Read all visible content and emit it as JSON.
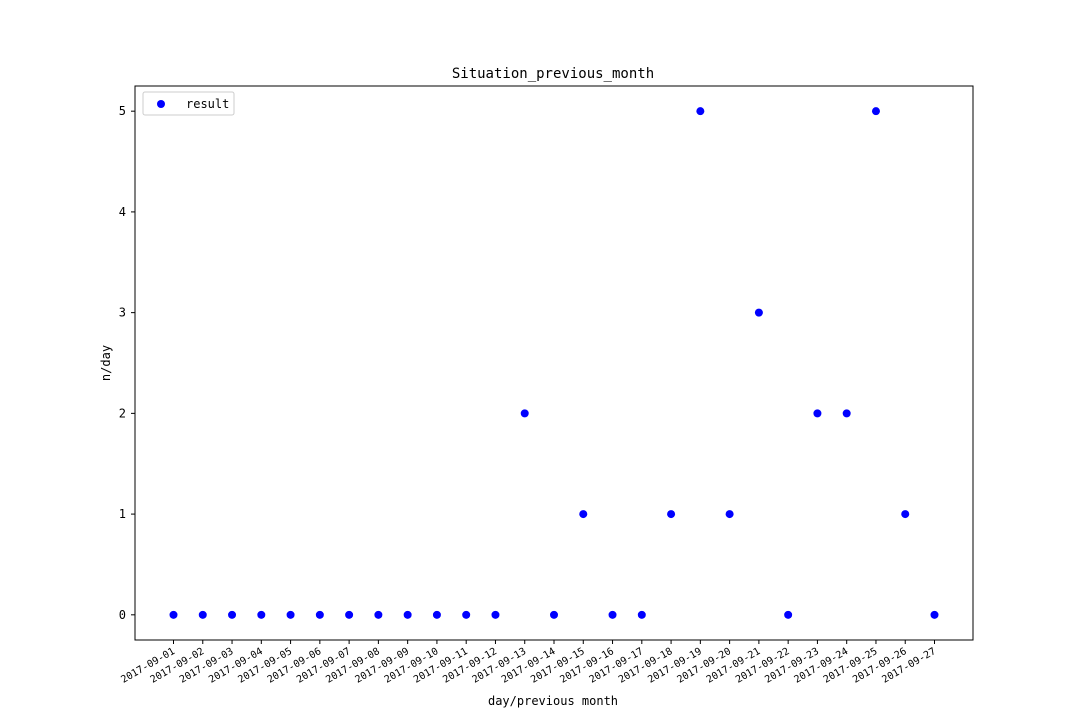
{
  "chart_data": {
    "type": "scatter",
    "title": "Situation_previous_month",
    "xlabel": "day/previous month",
    "ylabel": "n/day",
    "x": [
      "2017-09-01",
      "2017-09-02",
      "2017-09-03",
      "2017-09-04",
      "2017-09-05",
      "2017-09-06",
      "2017-09-07",
      "2017-09-08",
      "2017-09-09",
      "2017-09-10",
      "2017-09-11",
      "2017-09-12",
      "2017-09-13",
      "2017-09-14",
      "2017-09-15",
      "2017-09-16",
      "2017-09-17",
      "2017-09-18",
      "2017-09-19",
      "2017-09-20",
      "2017-09-21",
      "2017-09-22",
      "2017-09-23",
      "2017-09-24",
      "2017-09-25",
      "2017-09-26",
      "2017-09-27"
    ],
    "series": [
      {
        "name": "result",
        "color": "#0000ff",
        "values": [
          0,
          0,
          0,
          0,
          0,
          0,
          0,
          0,
          0,
          0,
          0,
          0,
          2,
          0,
          1,
          0,
          0,
          1,
          5,
          1,
          3,
          0,
          2,
          2,
          5,
          1,
          0
        ]
      }
    ],
    "yticks": [
      0,
      1,
      2,
      3,
      4,
      5
    ],
    "ylim": [
      -0.25,
      5.25
    ],
    "grid": false,
    "legend_position": "upper-left"
  }
}
